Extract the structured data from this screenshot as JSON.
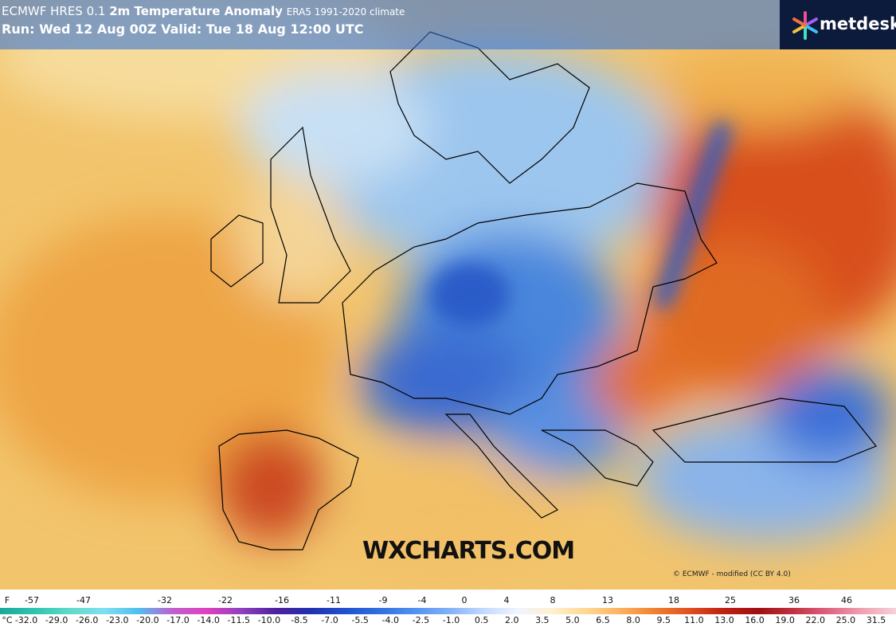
{
  "header": {
    "model": "ECMWF HRES 0.1",
    "title": "2m Temperature Anomaly",
    "climate": "ERA5 1991-2020 climate",
    "run": "Run: Wed 12 Aug 00Z Valid: Tue 18 Aug 12:00 UTC",
    "logo": "metdesk"
  },
  "watermark": "WXCHARTS.COM",
  "credit": "© ECMWF - modified (CC BY 4.0)",
  "scale": {
    "f_unit": "F",
    "f_labels": [
      "-57",
      "-47",
      "-32",
      "-22",
      "-16",
      "-11",
      "-9",
      "-4",
      "0",
      "4",
      "8",
      "13",
      "18",
      "25",
      "36",
      "46"
    ],
    "c_unit": "°C",
    "c_labels": [
      "-32.0",
      "-29.0",
      "-26.0",
      "-23.0",
      "-20.0",
      "-17.0",
      "-14.0",
      "-11.5",
      "-10.0",
      "-8.5",
      "-7.0",
      "-5.5",
      "-4.0",
      "-2.5",
      "-1.0",
      "0.5",
      "2.0",
      "3.5",
      "5.0",
      "6.5",
      "8.0",
      "9.5",
      "11.0",
      "13.0",
      "16.0",
      "19.0",
      "22.0",
      "25.0",
      "31.5"
    ]
  }
}
